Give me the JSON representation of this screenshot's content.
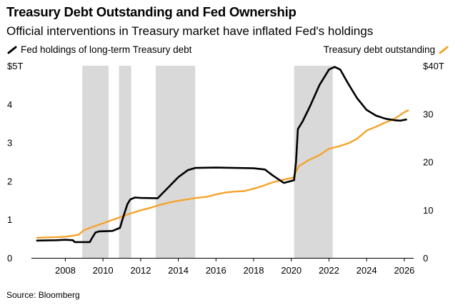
{
  "header": {
    "title": "Treasury Debt Outstanding and Fed Ownership",
    "subtitle": "Official interventions in Treasury market have inflated Fed's holdings"
  },
  "legend": {
    "fed": "Fed holdings of long-term Treasury debt",
    "treasury": "Treasury debt outstanding"
  },
  "footer": {
    "source": "Source: Bloomberg"
  },
  "colors": {
    "fed": "#000000",
    "treasury": "#f5a32a",
    "shade": "#d9d9d9",
    "axis": "#000000"
  },
  "chart_data": {
    "type": "line",
    "title": "Treasury Debt Outstanding and Fed Ownership",
    "x_range": [
      2006.2,
      2026.5
    ],
    "x_ticks": [
      2008,
      2010,
      2012,
      2014,
      2016,
      2018,
      2020,
      2022,
      2024,
      2026
    ],
    "y_left": {
      "range": [
        0,
        5
      ],
      "ticks": [
        0,
        1,
        2,
        3,
        4,
        5
      ],
      "tick_labels": [
        "0",
        "1",
        "2",
        "3",
        "4",
        "$5T"
      ]
    },
    "y_right": {
      "range": [
        0,
        40
      ],
      "ticks": [
        0,
        10,
        20,
        30,
        40
      ],
      "tick_labels": [
        "0",
        "10",
        "20",
        "30",
        "$40T"
      ]
    },
    "shaded_periods": [
      [
        2008.9,
        2010.3
      ],
      [
        2010.85,
        2011.5
      ],
      [
        2012.8,
        2014.9
      ],
      [
        2020.15,
        2022.2
      ]
    ],
    "series": [
      {
        "name": "Fed holdings of long-term Treasury debt",
        "axis": "left",
        "points": [
          [
            2006.5,
            0.45
          ],
          [
            2007.5,
            0.46
          ],
          [
            2008.0,
            0.47
          ],
          [
            2008.4,
            0.46
          ],
          [
            2008.5,
            0.41
          ],
          [
            2009.3,
            0.41
          ],
          [
            2009.4,
            0.5
          ],
          [
            2009.6,
            0.66
          ],
          [
            2009.8,
            0.69
          ],
          [
            2010.5,
            0.7
          ],
          [
            2010.9,
            0.78
          ],
          [
            2011.1,
            1.1
          ],
          [
            2011.3,
            1.4
          ],
          [
            2011.45,
            1.52
          ],
          [
            2011.7,
            1.57
          ],
          [
            2012.0,
            1.56
          ],
          [
            2012.9,
            1.55
          ],
          [
            2013.5,
            1.85
          ],
          [
            2014.0,
            2.1
          ],
          [
            2014.5,
            2.28
          ],
          [
            2014.9,
            2.34
          ],
          [
            2016.0,
            2.35
          ],
          [
            2017.0,
            2.34
          ],
          [
            2018.0,
            2.33
          ],
          [
            2018.6,
            2.3
          ],
          [
            2019.0,
            2.15
          ],
          [
            2019.6,
            1.95
          ],
          [
            2020.15,
            2.02
          ],
          [
            2020.25,
            2.5
          ],
          [
            2020.35,
            3.35
          ],
          [
            2020.6,
            3.55
          ],
          [
            2021.0,
            3.95
          ],
          [
            2021.5,
            4.5
          ],
          [
            2022.0,
            4.9
          ],
          [
            2022.3,
            4.97
          ],
          [
            2022.6,
            4.9
          ],
          [
            2023.0,
            4.55
          ],
          [
            2023.5,
            4.15
          ],
          [
            2024.0,
            3.85
          ],
          [
            2024.5,
            3.7
          ],
          [
            2025.0,
            3.62
          ],
          [
            2025.5,
            3.58
          ],
          [
            2025.8,
            3.57
          ],
          [
            2026.1,
            3.6
          ]
        ]
      },
      {
        "name": "Treasury debt outstanding",
        "axis": "right",
        "points": [
          [
            2006.5,
            4.2
          ],
          [
            2007.5,
            4.3
          ],
          [
            2008.0,
            4.4
          ],
          [
            2008.7,
            4.8
          ],
          [
            2009.0,
            5.8
          ],
          [
            2009.5,
            6.5
          ],
          [
            2010.0,
            7.2
          ],
          [
            2010.5,
            7.9
          ],
          [
            2011.0,
            8.6
          ],
          [
            2011.5,
            9.3
          ],
          [
            2012.0,
            9.9
          ],
          [
            2012.5,
            10.4
          ],
          [
            2013.0,
            11.0
          ],
          [
            2013.5,
            11.5
          ],
          [
            2014.0,
            11.9
          ],
          [
            2014.5,
            12.2
          ],
          [
            2015.0,
            12.5
          ],
          [
            2015.5,
            12.7
          ],
          [
            2016.0,
            13.2
          ],
          [
            2016.5,
            13.6
          ],
          [
            2017.0,
            13.8
          ],
          [
            2017.5,
            13.9
          ],
          [
            2018.0,
            14.4
          ],
          [
            2018.5,
            15.0
          ],
          [
            2019.0,
            15.7
          ],
          [
            2019.5,
            16.2
          ],
          [
            2020.1,
            16.7
          ],
          [
            2020.4,
            19.1
          ],
          [
            2020.7,
            19.8
          ],
          [
            2021.0,
            20.5
          ],
          [
            2021.5,
            21.4
          ],
          [
            2022.0,
            22.7
          ],
          [
            2022.5,
            23.2
          ],
          [
            2023.0,
            23.8
          ],
          [
            2023.5,
            24.8
          ],
          [
            2024.0,
            26.5
          ],
          [
            2024.5,
            27.3
          ],
          [
            2025.0,
            28.2
          ],
          [
            2025.5,
            29.0
          ],
          [
            2026.0,
            30.3
          ],
          [
            2026.2,
            30.7
          ]
        ]
      }
    ]
  }
}
